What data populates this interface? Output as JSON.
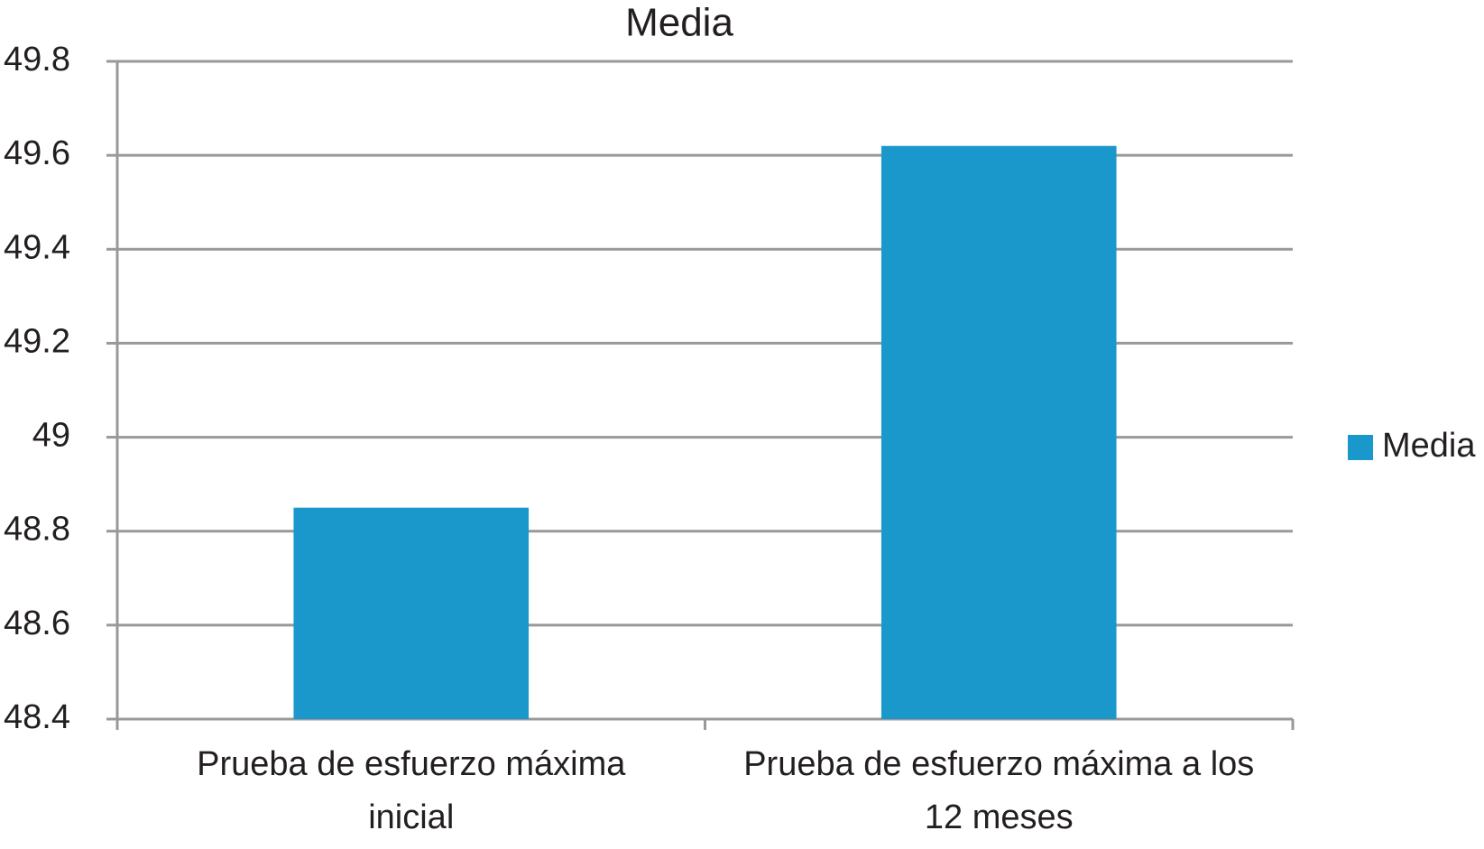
{
  "chart_data": {
    "type": "bar",
    "title": "Media",
    "categories": [
      "Prueba de esfuerzo máxima inicial",
      "Prueba de esfuerzo máxima a los 12 meses"
    ],
    "series": [
      {
        "name": "Media",
        "color": "#1b98cb",
        "values": [
          48.85,
          49.62
        ]
      }
    ],
    "ylim": [
      48.4,
      49.8
    ],
    "yticks": [
      48.4,
      48.6,
      48.8,
      49,
      49.2,
      49.4,
      49.6,
      49.8
    ],
    "grid": true,
    "legend": "right"
  }
}
